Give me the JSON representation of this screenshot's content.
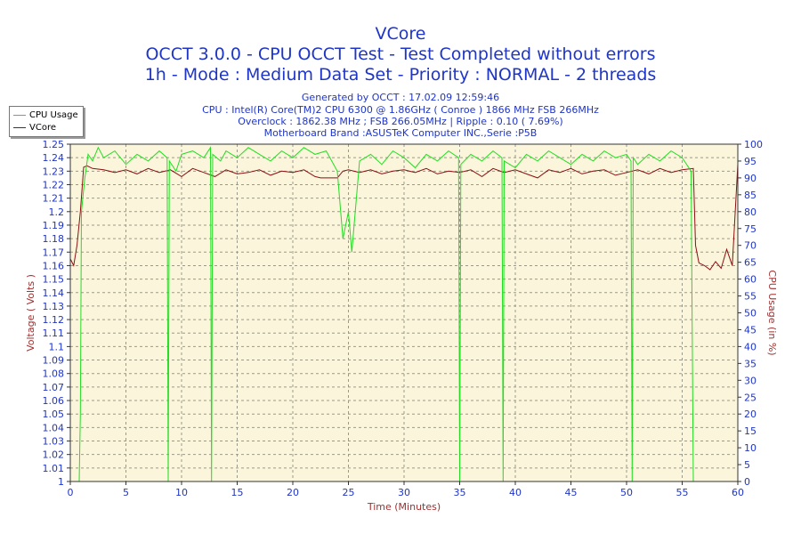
{
  "header": {
    "title": "VCore",
    "line2": "OCCT 3.0.0 - CPU OCCT Test - Test Completed without errors",
    "line3": "1h - Mode : Medium Data Set - Priority : NORMAL - 2 threads",
    "generated": "Generated by OCCT : 17.02.09 12:59:46",
    "cpu": "CPU : Intel(R) Core(TM)2 CPU 6300 @ 1.86GHz ( Conroe ) 1866 MHz FSB 266MHz",
    "overclock": "Overclock : 1862.38 MHz ; FSB 266.05MHz | Ripple : 0.10 ( 7.69%)",
    "motherboard": "Motherboard Brand :ASUSTeK Computer INC.,Serie :P5B"
  },
  "legend": {
    "items": [
      {
        "label": "CPU Usage",
        "color": "#22dd22"
      },
      {
        "label": "VCore",
        "color": "#8b1010"
      }
    ]
  },
  "chart_data": {
    "type": "line",
    "xlabel": "Time (Minutes)",
    "ylabel_left": "Voltage ( Volts )",
    "ylabel_right": "CPU Usage (in %)",
    "xlim": [
      0,
      60
    ],
    "ylim_left": [
      1.0,
      1.25
    ],
    "ylim_right": [
      0,
      100
    ],
    "x_ticks": [
      0,
      5,
      10,
      15,
      20,
      25,
      30,
      35,
      40,
      45,
      50,
      55,
      60
    ],
    "y_left_ticks": [
      "1",
      "1.01",
      "1.02",
      "1.03",
      "1.04",
      "1.05",
      "1.06",
      "1.07",
      "1.08",
      "1.09",
      "1.1",
      "1.11",
      "1.12",
      "1.13",
      "1.14",
      "1.15",
      "1.16",
      "1.17",
      "1.18",
      "1.19",
      "1.2",
      "1.21",
      "1.22",
      "1.23",
      "1.24",
      "1.25"
    ],
    "y_right_ticks": [
      "0",
      "5",
      "10",
      "15",
      "20",
      "25",
      "30",
      "35",
      "40",
      "45",
      "50",
      "55",
      "60",
      "65",
      "70",
      "75",
      "80",
      "85",
      "90",
      "95",
      "100"
    ],
    "grid": true,
    "legend_position": "top-left",
    "colors": {
      "plot_bg": "#fbf5dc",
      "grid": "#9a9a8a",
      "axis_text": "#1f35c8",
      "axis_label": "#a03030"
    },
    "series": [
      {
        "name": "VCore",
        "axis": "left",
        "color": "#8b1010",
        "x": [
          0,
          0.3,
          0.6,
          0.9,
          1.2,
          1.5,
          2,
          3,
          4,
          5,
          6,
          7,
          8,
          9,
          10,
          11,
          12,
          13,
          14,
          15,
          16,
          17,
          18,
          19,
          20,
          21,
          22,
          22.5,
          24,
          24.5,
          25,
          26,
          27,
          28,
          29,
          30,
          31,
          32,
          33,
          34,
          35,
          36,
          37,
          38,
          39,
          40,
          41,
          42,
          43,
          44,
          45,
          46,
          47,
          48,
          49,
          50,
          51,
          52,
          53,
          54,
          55,
          56,
          56.2,
          56.5,
          57,
          57.5,
          58,
          58.5,
          59,
          59.5,
          60
        ],
        "values": [
          1.165,
          1.16,
          1.175,
          1.2,
          1.233,
          1.234,
          1.232,
          1.231,
          1.229,
          1.231,
          1.228,
          1.232,
          1.229,
          1.231,
          1.226,
          1.232,
          1.229,
          1.226,
          1.231,
          1.228,
          1.229,
          1.231,
          1.227,
          1.23,
          1.229,
          1.231,
          1.226,
          1.225,
          1.225,
          1.23,
          1.231,
          1.229,
          1.231,
          1.228,
          1.23,
          1.231,
          1.229,
          1.232,
          1.228,
          1.23,
          1.229,
          1.231,
          1.226,
          1.232,
          1.229,
          1.231,
          1.228,
          1.225,
          1.231,
          1.229,
          1.232,
          1.228,
          1.23,
          1.231,
          1.227,
          1.229,
          1.231,
          1.228,
          1.232,
          1.229,
          1.231,
          1.232,
          1.175,
          1.162,
          1.16,
          1.157,
          1.163,
          1.158,
          1.172,
          1.16,
          1.235
        ]
      },
      {
        "name": "CPU Usage",
        "axis": "right",
        "color": "#22dd22",
        "x": [
          0.8,
          0.9,
          1.0,
          1.3,
          1.6,
          2,
          2.5,
          3,
          4,
          5,
          6,
          7,
          8,
          8.7,
          8.8,
          8.9,
          9.5,
          10,
          11,
          12,
          12.6,
          12.7,
          12.8,
          13.5,
          14,
          15,
          16,
          17,
          18,
          19,
          20,
          21,
          22,
          23,
          24,
          24.5,
          25,
          25.3,
          26,
          27,
          28,
          29,
          30,
          31,
          32,
          33,
          34,
          34.9,
          35.0,
          35.1,
          36,
          37,
          38,
          38.8,
          38.9,
          39.0,
          40,
          41,
          42,
          43,
          44,
          45,
          46,
          47,
          48,
          49,
          50,
          50.4,
          50.5,
          50.6,
          51,
          52,
          53,
          54,
          55,
          55.8,
          56.0,
          56.2
        ],
        "values": [
          0,
          20,
          80,
          90,
          97,
          95,
          99,
          96,
          98,
          94,
          97,
          95,
          98,
          96,
          0,
          95,
          92,
          97,
          98,
          96,
          99,
          0,
          97,
          95,
          98,
          96,
          99,
          97,
          95,
          98,
          96,
          99,
          97,
          98,
          92,
          72,
          80,
          68,
          95,
          97,
          94,
          98,
          96,
          93,
          97,
          95,
          98,
          96,
          0,
          94,
          97,
          95,
          98,
          96,
          0,
          95,
          93,
          97,
          95,
          98,
          96,
          94,
          97,
          95,
          98,
          96,
          97,
          95,
          0,
          96,
          94,
          97,
          95,
          98,
          96,
          92,
          0,
          0
        ]
      }
    ]
  }
}
